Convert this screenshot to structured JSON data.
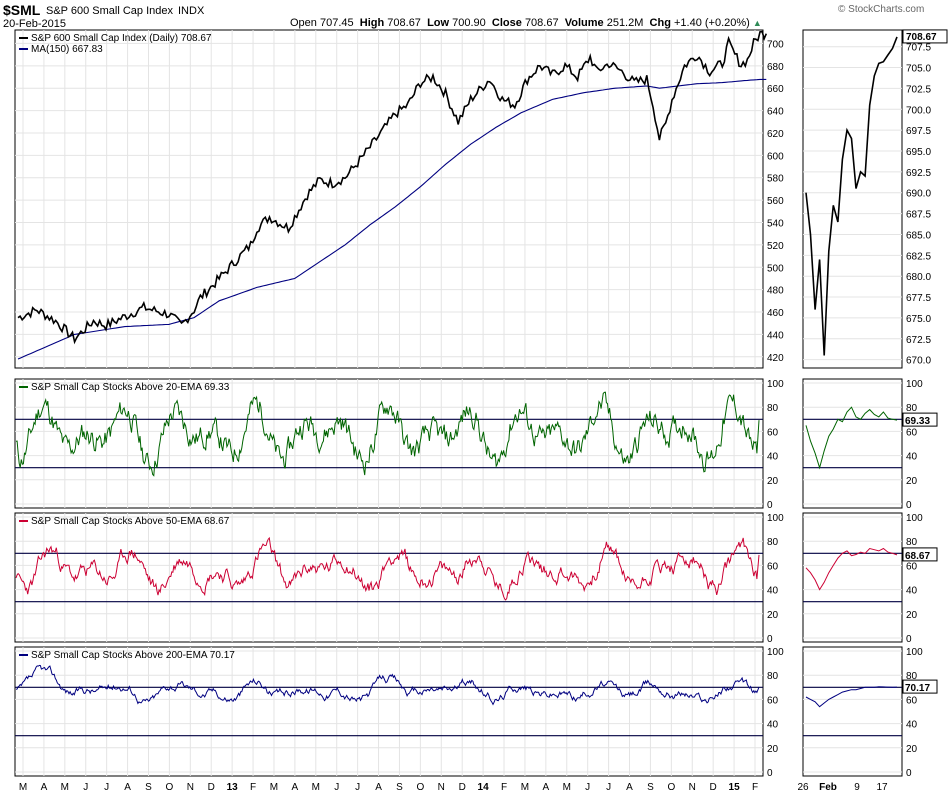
{
  "header": {
    "symbol": "$SML",
    "name": "S&P 600 Small Cap Index",
    "exchange": "INDX",
    "date": "20-Feb-2015",
    "open_label": "Open",
    "open": "707.45",
    "high_label": "High",
    "high": "708.67",
    "low_label": "Low",
    "low": "700.90",
    "close_label": "Close",
    "close": "708.67",
    "volume_label": "Volume",
    "volume": "251.2M",
    "chg_label": "Chg",
    "chg": "+1.40 (+0.20%)",
    "watermark": "© StockCharts.com"
  },
  "chart_data": [
    {
      "type": "line",
      "title": "S&P 600 Small Cap Index (Daily) 708.67",
      "legend": [
        {
          "label": "S&P 600 Small Cap Index (Daily) 708.67",
          "color": "#000000"
        },
        {
          "label": "MA(150) 667.83",
          "color": "#000080"
        }
      ],
      "ylim": [
        410,
        712
      ],
      "yticks": [
        "700",
        "680",
        "660",
        "640",
        "620",
        "600",
        "580",
        "560",
        "540",
        "520",
        "500",
        "480",
        "460",
        "440",
        "420"
      ],
      "last_value": "708.67",
      "anchors": {
        "price": [
          [
            0,
            455
          ],
          [
            3,
            462
          ],
          [
            6,
            452
          ],
          [
            9,
            436
          ],
          [
            12,
            452
          ],
          [
            14,
            448
          ],
          [
            17,
            456
          ],
          [
            20,
            464
          ],
          [
            24,
            458
          ],
          [
            26,
            448
          ],
          [
            28,
            462
          ],
          [
            29,
            473
          ],
          [
            31,
            484
          ],
          [
            33,
            496
          ],
          [
            35,
            508
          ],
          [
            37,
            520
          ],
          [
            38,
            535
          ],
          [
            40,
            545
          ],
          [
            43,
            535
          ],
          [
            46,
            565
          ],
          [
            48,
            578
          ],
          [
            50,
            575
          ],
          [
            52,
            580
          ],
          [
            55,
            600
          ],
          [
            58,
            622
          ],
          [
            60,
            637
          ],
          [
            62,
            645
          ],
          [
            64,
            665
          ],
          [
            66,
            670
          ],
          [
            68,
            655
          ],
          [
            70,
            630
          ],
          [
            72,
            650
          ],
          [
            75,
            668
          ],
          [
            77,
            650
          ],
          [
            79,
            645
          ],
          [
            81,
            668
          ],
          [
            83,
            680
          ],
          [
            85,
            672
          ],
          [
            87,
            680
          ],
          [
            89,
            670
          ],
          [
            91,
            688
          ],
          [
            92,
            675
          ],
          [
            94,
            682
          ],
          [
            96,
            675
          ],
          [
            98,
            665
          ],
          [
            100,
            668
          ],
          [
            101,
            645
          ],
          [
            102,
            615
          ],
          [
            103,
            628
          ],
          [
            104,
            650
          ],
          [
            106,
            680
          ],
          [
            108,
            690
          ],
          [
            110,
            675
          ],
          [
            112,
            682
          ],
          [
            113,
            700
          ],
          [
            114,
            690
          ],
          [
            115,
            681
          ],
          [
            116,
            685
          ],
          [
            117,
            700
          ],
          [
            118,
            708.67
          ]
        ],
        "ma150": [
          [
            0,
            418
          ],
          [
            9,
            440
          ],
          [
            17,
            447
          ],
          [
            24,
            449
          ],
          [
            28,
            455
          ],
          [
            32,
            470
          ],
          [
            38,
            482
          ],
          [
            44,
            490
          ],
          [
            48,
            505
          ],
          [
            52,
            520
          ],
          [
            56,
            538
          ],
          [
            60,
            554
          ],
          [
            64,
            572
          ],
          [
            68,
            592
          ],
          [
            72,
            610
          ],
          [
            76,
            625
          ],
          [
            80,
            638
          ],
          [
            85,
            650
          ],
          [
            90,
            656
          ],
          [
            95,
            660
          ],
          [
            100,
            662
          ],
          [
            102,
            660
          ],
          [
            105,
            662
          ],
          [
            108,
            664
          ],
          [
            112,
            665
          ],
          [
            116,
            667
          ],
          [
            118,
            667.83
          ]
        ]
      },
      "series": [
        {
          "name": "S&P 600 Small Cap Index (Daily)",
          "last": 708.67
        },
        {
          "name": "MA(150)",
          "last": 667.83
        }
      ]
    },
    {
      "type": "line",
      "title": "S&P 600 Small Cap Index — Feb 2015 inset",
      "ylim": [
        669,
        709.5
      ],
      "yticks": [
        "708.67",
        "707.5",
        "705.0",
        "702.5",
        "700.0",
        "697.5",
        "695.0",
        "692.5",
        "690.0",
        "687.5",
        "685.0",
        "682.5",
        "680.0",
        "677.5",
        "675.0",
        "672.5",
        "670.0"
      ],
      "x_labels": [
        "26",
        "Feb",
        "9",
        "17"
      ],
      "values": [
        690.0,
        685.0,
        676.0,
        682.0,
        670.5,
        683.0,
        688.5,
        686.5,
        694.0,
        697.5,
        696.5,
        690.5,
        692.5,
        692.0,
        700.5,
        704.0,
        705.5,
        705.7,
        706.5,
        707.3,
        708.67
      ]
    },
    {
      "type": "line",
      "title": "S&P Small Cap Stocks Above 20-EMA 69.33",
      "last_value": "69.33",
      "ylim": [
        0,
        100
      ],
      "yticks": [
        "100",
        "80",
        "60",
        "40",
        "20",
        "0"
      ],
      "reference_lines": [
        70,
        30
      ],
      "color": "#006400",
      "params": {
        "base": 58,
        "amp": 26,
        "noise": 16,
        "seed": 11,
        "pull": 0.35
      },
      "inset_values": [
        65,
        52,
        42,
        30,
        44,
        56,
        62,
        70,
        68,
        76,
        80,
        72,
        70,
        75,
        78,
        74,
        72,
        76,
        71,
        70,
        69.33
      ]
    },
    {
      "type": "line",
      "title": "S&P Small Cap Stocks Above 50-EMA 68.67",
      "last_value": "68.67",
      "ylim": [
        0,
        100
      ],
      "yticks": [
        "100",
        "80",
        "60",
        "40",
        "20",
        "0"
      ],
      "reference_lines": [
        70,
        30
      ],
      "color": "#cc0033",
      "params": {
        "base": 56,
        "amp": 22,
        "noise": 10,
        "seed": 23,
        "pull": 0.15
      },
      "inset_values": [
        58,
        54,
        48,
        40,
        46,
        54,
        60,
        66,
        70,
        72,
        68,
        69,
        71,
        70,
        74,
        73,
        72,
        74,
        71,
        70,
        68.67
      ]
    },
    {
      "type": "line",
      "title": "S&P Small Cap Stocks Above 200-EMA 70.17",
      "last_value": "70.17",
      "ylim": [
        0,
        100
      ],
      "yticks": [
        "100",
        "80",
        "60",
        "40",
        "20",
        "0"
      ],
      "reference_lines": [
        70,
        30
      ],
      "color": "#000080",
      "params": {
        "base": 68,
        "amp": 16,
        "noise": 5,
        "seed": 37,
        "pull": 0.06
      },
      "inset_values": [
        62,
        60,
        58,
        54,
        57,
        60,
        62,
        64,
        66,
        67,
        68,
        68,
        69,
        70,
        70,
        70,
        70.5,
        70.3,
        70.2,
        70.1,
        70.17
      ]
    }
  ],
  "x_axis": {
    "labels": [
      "M",
      "A",
      "M",
      "J",
      "J",
      "A",
      "S",
      "O",
      "N",
      "D",
      "13",
      "F",
      "M",
      "A",
      "M",
      "J",
      "J",
      "A",
      "S",
      "O",
      "N",
      "D",
      "14",
      "F",
      "M",
      "A",
      "M",
      "J",
      "J",
      "A",
      "S",
      "O",
      "N",
      "D",
      "15",
      "F"
    ]
  }
}
